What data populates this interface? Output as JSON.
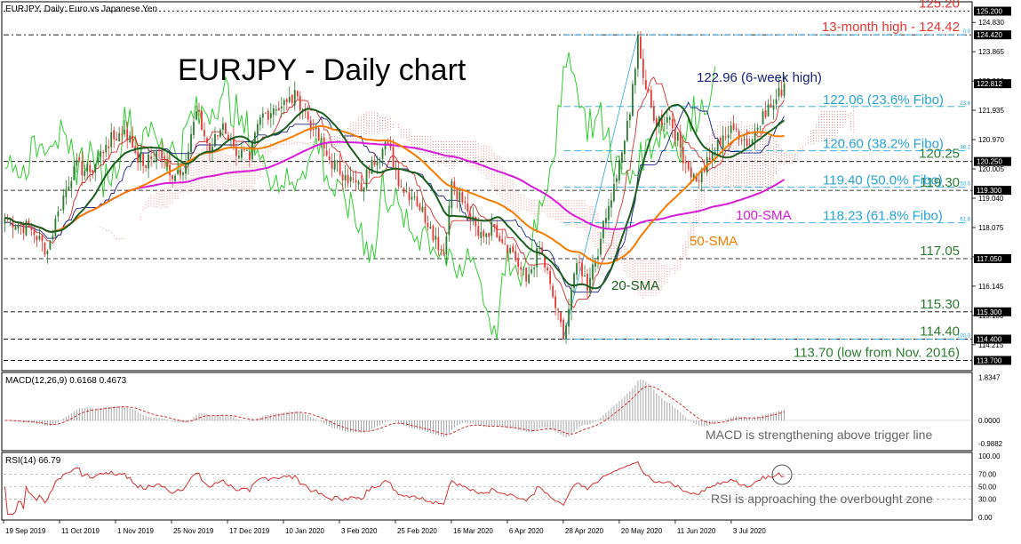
{
  "chart_data": {
    "type": "line",
    "symbol_header": "EURJPY, Daily:  Euro vs Japanese Yen",
    "title": "EURJPY - Daily chart",
    "x_labels": [
      "19 Sep 2019",
      "11 Oct 2019",
      "1 Nov 2019",
      "25 Nov 2019",
      "17 Dec 2019",
      "10 Jan 2020",
      "3 Feb 2020",
      "25 Feb 2020",
      "16 Mar 2020",
      "6 Apr 2020",
      "28 Apr 2020",
      "20 May 2020",
      "11 Jun 2020",
      "3 Jul 2020"
    ],
    "ylim": [
      113.45,
      125.45
    ],
    "y_ticks": [
      "124.830",
      "123.865",
      "122.900",
      "121.935",
      "120.970",
      "120.005",
      "119.040",
      "118.075",
      "117.110",
      "116.145",
      "115.180",
      "114.215"
    ],
    "price_markers": [
      {
        "label": "125.200",
        "value": 125.2,
        "dark": true
      },
      {
        "label": "124.420",
        "value": 124.42,
        "dark": true
      },
      {
        "label": "122.812",
        "value": 122.812,
        "dark": true
      },
      {
        "label": "120.250",
        "value": 120.25,
        "dark": true
      },
      {
        "label": "119.300",
        "value": 119.3,
        "dark": true
      },
      {
        "label": "117.050",
        "value": 117.05,
        "dark": true
      },
      {
        "label": "115.300",
        "value": 115.3,
        "dark": true
      },
      {
        "label": "114.400",
        "value": 114.4,
        "dark": true
      },
      {
        "label": "113.700",
        "value": 113.7,
        "dark": true
      }
    ],
    "levels": [
      {
        "label": "125.20",
        "value": 125.2,
        "color": "#e53935",
        "style": "dot"
      },
      {
        "label": "13-month high - 124.42",
        "value": 124.42,
        "color": "#e53935",
        "style": "dashdot"
      },
      {
        "label": "120.25",
        "value": 120.25,
        "color": "#2e7d32",
        "style": "dash"
      },
      {
        "label": "119.30",
        "value": 119.3,
        "color": "#2e7d32",
        "style": "dash"
      },
      {
        "label": "117.05",
        "value": 117.05,
        "color": "#2e7d32",
        "style": "dash"
      },
      {
        "label": "115.30",
        "value": 115.3,
        "color": "#2e7d32",
        "style": "dash"
      },
      {
        "label": "114.40",
        "value": 114.4,
        "color": "#2e7d32",
        "style": "dash"
      },
      {
        "label": "113.70 (low from Nov. 2016)",
        "value": 113.7,
        "color": "#2e7d32",
        "style": "dash"
      }
    ],
    "fibo": [
      {
        "label": "122.06 (23.6% Fibo)",
        "tag": "23.6",
        "value": 122.06
      },
      {
        "label": "120.60 (38.2% Fibo)",
        "tag": "38.2",
        "value": 120.6
      },
      {
        "label": "119.40 (50.0% Fibo)",
        "tag": "50.0",
        "value": 119.4
      },
      {
        "label": "118.23 (61.8% Fibo)",
        "tag": "61.8",
        "value": 118.23
      }
    ],
    "fibo_top_tag": "0.0",
    "fibo_bottom_tag": "100.0",
    "annotation_high": "122.96 (6-week high)",
    "sma_labels": {
      "sma20": "20-SMA",
      "sma50": "50-SMA",
      "sma100": "100-SMA"
    },
    "price_anchors": [
      [
        0,
        118.4
      ],
      [
        10,
        118.0
      ],
      [
        16,
        117.3
      ],
      [
        20,
        118.6
      ],
      [
        26,
        120.1
      ],
      [
        32,
        119.9
      ],
      [
        38,
        120.8
      ],
      [
        45,
        121.3
      ],
      [
        52,
        120.1
      ],
      [
        58,
        120.6
      ],
      [
        62,
        119.8
      ],
      [
        68,
        120.2
      ],
      [
        72,
        121.9
      ],
      [
        77,
        120.6
      ],
      [
        82,
        121.5
      ],
      [
        86,
        120.7
      ],
      [
        92,
        120.3
      ],
      [
        96,
        121.7
      ],
      [
        101,
        122.0
      ],
      [
        106,
        122.2
      ],
      [
        110,
        122.4
      ],
      [
        116,
        121.3
      ],
      [
        122,
        120.3
      ],
      [
        128,
        119.8
      ],
      [
        134,
        119.3
      ],
      [
        138,
        120.3
      ],
      [
        144,
        120.8
      ],
      [
        149,
        119.4
      ],
      [
        154,
        119.1
      ],
      [
        160,
        118.1
      ],
      [
        165,
        117.2
      ],
      [
        168,
        119.6
      ],
      [
        174,
        118.6
      ],
      [
        178,
        117.8
      ],
      [
        184,
        118.1
      ],
      [
        190,
        117.4
      ],
      [
        196,
        116.3
      ],
      [
        201,
        117.4
      ],
      [
        206,
        115.8
      ],
      [
        210,
        114.4
      ],
      [
        215,
        116.9
      ],
      [
        219,
        116.0
      ],
      [
        224,
        117.7
      ],
      [
        230,
        119.7
      ],
      [
        235,
        121.8
      ],
      [
        238,
        124.42
      ],
      [
        240,
        123.0
      ],
      [
        244,
        121.6
      ],
      [
        250,
        121.7
      ],
      [
        256,
        120.2
      ],
      [
        260,
        119.6
      ],
      [
        265,
        120.3
      ],
      [
        270,
        121.1
      ],
      [
        275,
        121.3
      ],
      [
        280,
        120.8
      ],
      [
        285,
        121.9
      ],
      [
        289,
        122.1
      ],
      [
        293,
        122.812
      ]
    ],
    "macd": {
      "label": "MACD(12,26,9) 0.6168 0.4673",
      "ticks": [
        "1.8347",
        "0.0000",
        "-0.9882"
      ],
      "ylim": [
        -1.18,
        1.9
      ],
      "note": "MACD is strengthening above trigger line"
    },
    "rsi": {
      "label": "RSI(14) 66.79",
      "ticks": [
        "100.00",
        "70.00",
        "50.00",
        "30.00",
        "0.00"
      ],
      "ylim": [
        0,
        100
      ],
      "note": "RSI is approaching the overbought zone"
    },
    "colors": {
      "up": "#2e7d32",
      "down": "#e53935",
      "sma20": "#1b5e20",
      "sma50": "#f57c00",
      "sma100": "#d81bd8",
      "chikou": "#33cc33",
      "tenkan": "#d32f2f",
      "kijun": "#1a237e",
      "cloud": "#e57373",
      "fibo": "#29a3d6",
      "rsi": "#d32f2f",
      "macd_hist": "#9e9e9e",
      "macd_signal": "#d32f2f"
    }
  }
}
